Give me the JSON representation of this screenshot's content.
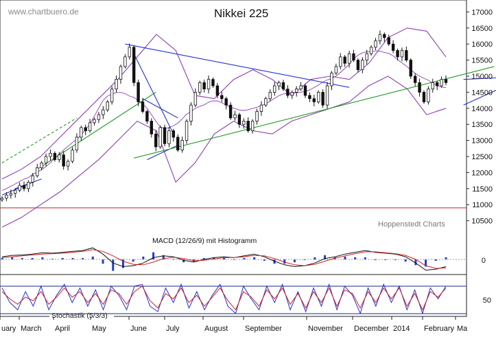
{
  "watermark": "www.chartbuero.de",
  "credit": "Hoppenstedt Charts",
  "chart_data": {
    "type": "candlestick",
    "title": "Nikkei 225",
    "ylim": [
      10000,
      17200
    ],
    "y_ticks": [
      10500,
      11000,
      11500,
      12000,
      12500,
      13000,
      13500,
      14000,
      14500,
      15000,
      15500,
      16000,
      16500,
      17000
    ],
    "x_labels": [
      "uary",
      "March",
      "April",
      "May",
      "June",
      "July",
      "August",
      "September",
      "November",
      "December",
      "2014",
      "February",
      "Ma"
    ],
    "horizontal_line": 10900,
    "close_series": [
      11200,
      11300,
      11350,
      11450,
      11600,
      11500,
      11700,
      11900,
      12150,
      12300,
      12500,
      12600,
      12400,
      12550,
      12200,
      12350,
      12700,
      13100,
      13400,
      13300,
      13550,
      13650,
      13800,
      13950,
      14200,
      14600,
      14900,
      15300,
      15600,
      15900,
      14800,
      14200,
      13900,
      13600,
      13200,
      12800,
      13400,
      12900,
      13300,
      13100,
      12700,
      13000,
      13600,
      14100,
      14500,
      14800,
      14600,
      14900,
      14700,
      14400,
      14300,
      14100,
      13700,
      13800,
      13500,
      13600,
      13300,
      13600,
      13900,
      14100,
      14300,
      14500,
      14700,
      14800,
      14600,
      14400,
      14500,
      14600,
      14700,
      14400,
      14300,
      14200,
      14500,
      14100,
      14700,
      15100,
      15300,
      15600,
      15400,
      15700,
      15500,
      15200,
      15500,
      15700,
      15900,
      16100,
      16300,
      16200,
      16000,
      15800,
      15600,
      15800,
      15500,
      15000,
      14800,
      14500,
      14200,
      14600,
      14800,
      14700,
      14900,
      14800
    ],
    "bollinger": {
      "upper": [
        11800,
        12100,
        12500,
        13100,
        13700,
        14300,
        14900,
        15600,
        16300,
        15800,
        14400,
        14300,
        14900,
        15200,
        14900,
        14400,
        14900,
        15000,
        14900,
        15400,
        16200,
        16500,
        16400,
        15600
      ],
      "lower": [
        10300,
        10600,
        11000,
        11400,
        11900,
        12400,
        13000,
        13600,
        13300,
        11700,
        12300,
        13200,
        13600,
        13300,
        13200,
        13600,
        13800,
        14000,
        14200,
        14700,
        15000,
        14600,
        13800,
        14000
      ]
    },
    "trend_lines": [
      {
        "name": "",
        "color": "#2030d0",
        "points": [
          [
            0,
            11300
          ],
          [
            7,
            11700
          ]
        ]
      },
      {
        "name": "",
        "color": "#2030d0",
        "points": [
          [
            3,
            11500
          ],
          [
            9,
            11800
          ]
        ]
      },
      {
        "name": "",
        "color": "#2030d0",
        "points": [
          [
            28,
            16000
          ],
          [
            79,
            14650
          ]
        ]
      },
      {
        "name": "",
        "color": "#2030d0",
        "points": [
          [
            30,
            15700
          ],
          [
            39,
            13200
          ]
        ]
      },
      {
        "name": "",
        "color": "#2030d0",
        "points": [
          [
            32,
            14300
          ],
          [
            40,
            13700
          ]
        ]
      },
      {
        "name": "",
        "color": "#2030d0",
        "points": [
          [
            33,
            12400
          ],
          [
            40,
            12850
          ]
        ]
      },
      {
        "name": "",
        "color": "#2030d0",
        "points": [
          [
            105,
            14900
          ],
          [
            113,
            14950
          ]
        ]
      },
      {
        "name": "",
        "color": "#2030d0",
        "points": [
          [
            105,
            14100
          ],
          [
            113,
            14600
          ]
        ]
      },
      {
        "name": "",
        "color": "#1f9a1f",
        "points": [
          [
            30,
            12450
          ],
          [
            112,
            15300
          ]
        ]
      },
      {
        "name": "",
        "color": "#1f9a1f",
        "points": [
          [
            8,
            12100
          ],
          [
            35,
            14500
          ]
        ]
      },
      {
        "name": "",
        "color": "#1f9a1f",
        "dashed": true,
        "points": [
          [
            0,
            12300
          ],
          [
            17,
            13700
          ]
        ]
      }
    ],
    "macd": {
      "label": "MACD (12/26/9) mit Histogramm",
      "zero_tick": "0",
      "macd": [
        30,
        45,
        50,
        60,
        75,
        70,
        80,
        90,
        100,
        130,
        60,
        -40,
        -80,
        -70,
        -40,
        20,
        40,
        30,
        -10,
        -30,
        0,
        20,
        30,
        20,
        40,
        60,
        30,
        -20,
        -60,
        -80,
        -70,
        -40,
        10,
        30,
        60,
        80,
        100,
        80,
        70,
        60,
        30,
        -40,
        -120,
        -110,
        -80
      ],
      "signal": [
        20,
        30,
        40,
        50,
        60,
        65,
        70,
        80,
        90,
        110,
        90,
        40,
        -20,
        -55,
        -60,
        -30,
        10,
        25,
        10,
        -15,
        -10,
        5,
        20,
        22,
        30,
        45,
        40,
        10,
        -30,
        -60,
        -70,
        -55,
        -20,
        15,
        40,
        65,
        85,
        85,
        75,
        65,
        45,
        0,
        -70,
        -100,
        -95
      ]
    },
    "stochastic": {
      "label": "Stochastik (5/3/3)",
      "tick": "50",
      "k": [
        80,
        40,
        20,
        70,
        30,
        85,
        20,
        60,
        90,
        40,
        80,
        30,
        75,
        20,
        85,
        60,
        20,
        85,
        90,
        30,
        15,
        80,
        40,
        90,
        25,
        70,
        20,
        60,
        90,
        30,
        10,
        85,
        50,
        20,
        85,
        40,
        90,
        20,
        70,
        15,
        80,
        30,
        90,
        20,
        85,
        60,
        10,
        80,
        30,
        90,
        40,
        85,
        20,
        75,
        10,
        80,
        50,
        85
      ],
      "d": [
        70,
        50,
        35,
        55,
        45,
        70,
        35,
        55,
        80,
        55,
        70,
        40,
        65,
        35,
        75,
        65,
        35,
        70,
        85,
        45,
        25,
        65,
        50,
        80,
        40,
        60,
        30,
        55,
        80,
        45,
        20,
        70,
        55,
        30,
        75,
        50,
        80,
        35,
        65,
        25,
        70,
        40,
        80,
        30,
        75,
        65,
        25,
        70,
        40,
        80,
        50,
        80,
        30,
        65,
        20,
        70,
        55,
        80
      ]
    }
  }
}
